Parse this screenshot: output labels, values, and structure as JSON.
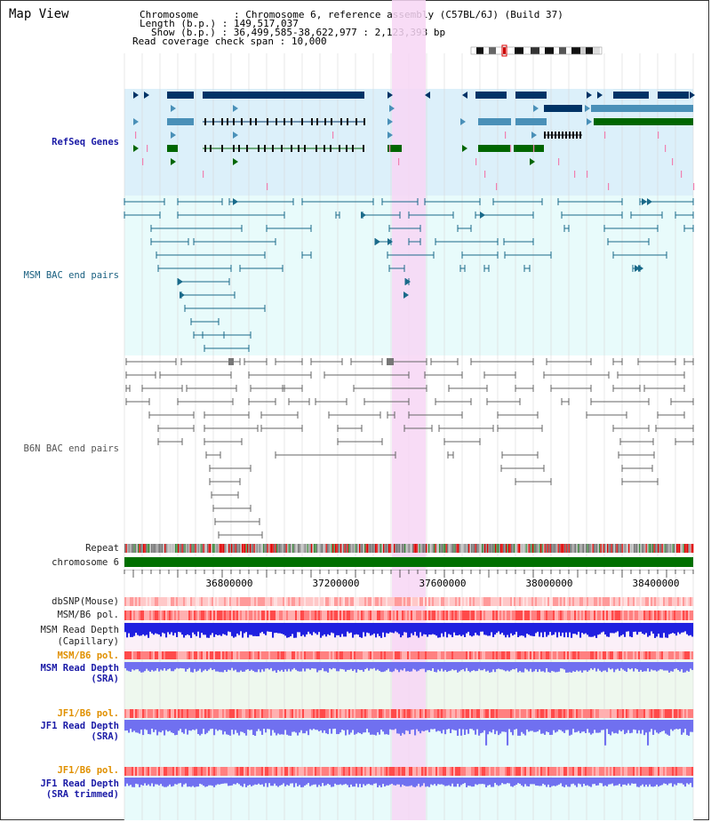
{
  "title": "Map View",
  "info": {
    "chromosome_key": "Chromosome",
    "chromosome_val": "Chromosome 6, reference assembly (C57BL/6J) (Build 37)",
    "length_key": "Length (b.p.)",
    "length_val": "149,517,037",
    "show_key": "Show (b.p.)",
    "show_val": "36,499,585-38,622,977 : 2,123,393 bp",
    "coverage_key": "Read coverage check span",
    "coverage_val": "10,000"
  },
  "tracks": {
    "refseq": "RefSeq Genes",
    "msm_bac": "MSM BAC end pairs",
    "b6n_bac": "B6N BAC end pairs",
    "repeat": "Repeat",
    "chromosome": "chromosome 6",
    "dbsnp": "dbSNP(Mouse)",
    "msm_b6_pol": "MSM/B6 pol.",
    "msm_depth_cap_1": "MSM Read Depth",
    "msm_depth_cap_2": "(Capillary)",
    "msm_b6_pol_2": "MSM/B6 pol.",
    "msm_depth_sra_1": "MSM Read Depth",
    "msm_depth_sra_2": "(SRA)",
    "jf1_b6_pol": "JF1/B6 pol.",
    "jf1_depth_sra_1": "JF1 Read Depth",
    "jf1_depth_sra_2": "(SRA)",
    "jf1_b6_pol_2": "JF1/B6 pol.",
    "jf1_depth_trim_1": "JF1 Read Depth",
    "jf1_depth_trim_2": "(SRA trimmed)"
  },
  "axis": {
    "ticks": [
      "36800000",
      "37200000",
      "37600000",
      "38000000",
      "38400000"
    ]
  },
  "colors": {
    "refseq_bg": "#dcf0fa",
    "bac_bg": "#e8fbfb",
    "highlight": "#f7d6f4",
    "gene_dark": "#003366",
    "gene_mid": "#4a90b8",
    "gene_green": "#006600",
    "msm_line": "#1a6a8a",
    "b6n_line": "#666666",
    "chrom_green": "#007000",
    "depth_blue": "#2020e0",
    "depth_light": "#7070f0"
  }
}
